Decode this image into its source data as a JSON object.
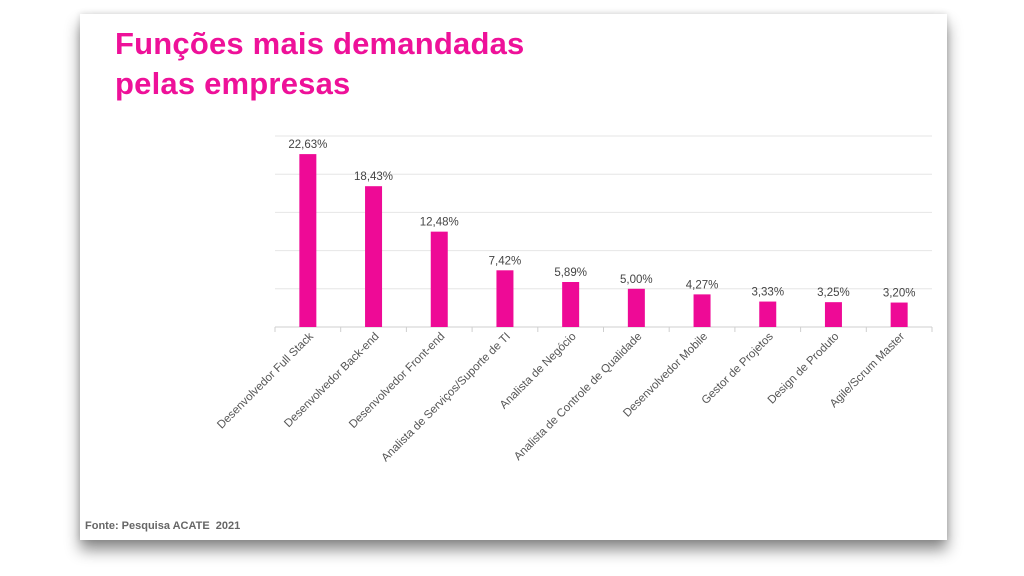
{
  "title_lines": [
    "Funções mais demandadas",
    "pelas empresas"
  ],
  "source": "Fonte: Pesquisa ACATE  2021",
  "chart_data": {
    "type": "bar",
    "title": "Funções mais demandadas pelas empresas",
    "categories": [
      "Desenvolvedor Full Stack",
      "Desenvolvedor Back-end",
      "Desenvolvedor Front-end",
      "Analista de Serviços/Suporte de TI",
      "Analista de Negócio",
      "Analista de Controle de Qualidade",
      "Desenvolvedor Mobile",
      "Gestor de Projetos",
      "Design de Produto",
      "Agile/Scrum Master"
    ],
    "values": [
      22.63,
      18.43,
      12.48,
      7.42,
      5.89,
      5.0,
      4.27,
      3.33,
      3.25,
      3.2
    ],
    "data_labels": [
      "22,63%",
      "18,43%",
      "12,48%",
      "7,42%",
      "5,89%",
      "5,00%",
      "4,27%",
      "3,33%",
      "3,25%",
      "3,20%"
    ],
    "ylim": [
      0,
      25
    ],
    "grid": true,
    "y_axis_labels_shown": false,
    "bar_color": "#ee0a96"
  }
}
